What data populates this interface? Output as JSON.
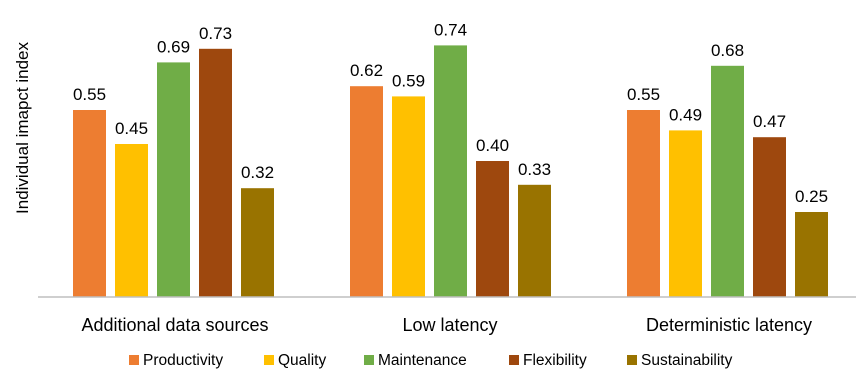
{
  "chart_data": {
    "type": "bar",
    "title": "",
    "xlabel": "",
    "ylabel": "Individual imapct index",
    "ylim": [
      0,
      0.8
    ],
    "grid": false,
    "legend_position": "bottom",
    "categories": [
      "Additional data sources",
      "Low latency",
      "Deterministic latency"
    ],
    "series": [
      {
        "name": "Productivity",
        "color": "#ED7D31",
        "values": [
          0.55,
          0.62,
          0.55
        ],
        "labels": [
          "0.55",
          "0.62",
          "0.55"
        ]
      },
      {
        "name": "Quality",
        "color": "#FFC000",
        "values": [
          0.45,
          0.59,
          0.49
        ],
        "labels": [
          "0.45",
          "0.59",
          "0.49"
        ]
      },
      {
        "name": "Maintenance",
        "color": "#70AD47",
        "values": [
          0.69,
          0.74,
          0.68
        ],
        "labels": [
          "0.69",
          "0.74",
          "0.68"
        ]
      },
      {
        "name": "Flexibility",
        "color": "#9E480E",
        "values": [
          0.73,
          0.4,
          0.47
        ],
        "labels": [
          "0.73",
          "0.40",
          "0.47"
        ]
      },
      {
        "name": "Sustainability",
        "color": "#997300",
        "values": [
          0.32,
          0.33,
          0.25
        ],
        "labels": [
          "0.32",
          "0.33",
          "0.25"
        ]
      }
    ]
  }
}
